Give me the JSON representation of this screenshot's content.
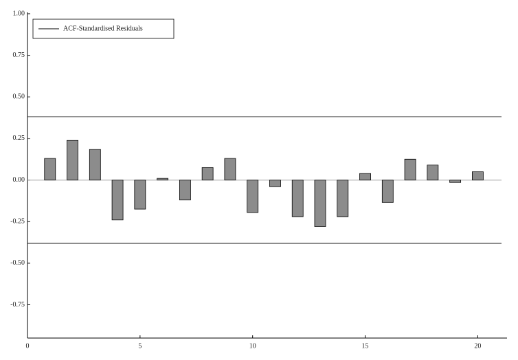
{
  "chart_data": {
    "type": "bar",
    "x": [
      1,
      2,
      3,
      4,
      5,
      6,
      7,
      8,
      9,
      10,
      11,
      12,
      13,
      14,
      15,
      16,
      17,
      18,
      19,
      20
    ],
    "series": [
      {
        "name": "ACF-Standardised Residuals",
        "color": "#8c8c8c",
        "values": [
          0.13,
          0.24,
          0.185,
          -0.24,
          -0.175,
          0.01,
          -0.12,
          0.075,
          0.13,
          -0.195,
          -0.04,
          -0.22,
          -0.28,
          -0.22,
          0.04,
          -0.135,
          0.125,
          0.09,
          -0.015,
          0.05
        ]
      }
    ],
    "confidence_bounds": [
      0.38,
      -0.38
    ],
    "xlim": [
      0,
      21.3
    ],
    "xticks": [
      0,
      5,
      10,
      15,
      20
    ],
    "ylim": [
      -0.95,
      1.0
    ],
    "yticks": [
      {
        "value": 1.0,
        "label": "1.00"
      },
      0.75,
      {
        "value": 0.5,
        "label": "0.50"
      },
      0.25,
      {
        "value": 0.0,
        "label": "0.00"
      },
      -0.25,
      {
        "value": -0.5,
        "label": "-0.50"
      },
      -0.75
    ],
    "legend": "top-left"
  }
}
